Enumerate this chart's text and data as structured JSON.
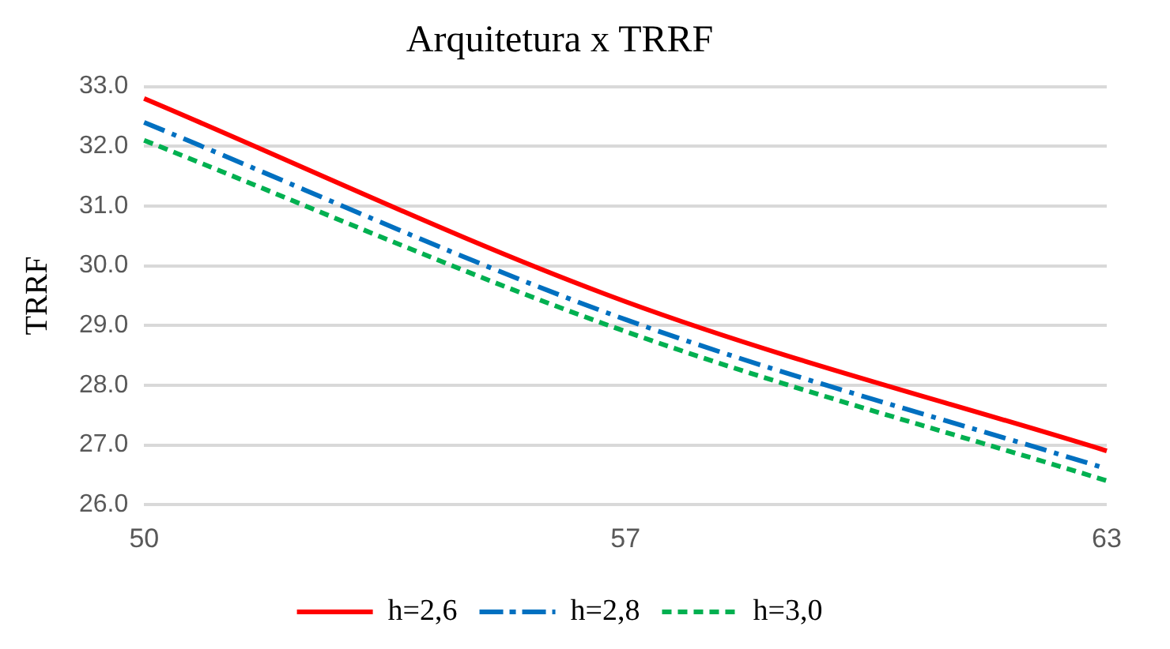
{
  "chart_data": {
    "type": "line",
    "title": "Arquitetura x TRRF",
    "ylabel": "TRRF",
    "categories": [
      "50",
      "57",
      "63"
    ],
    "series": [
      {
        "name": "h=2,6",
        "color": "#ff0000",
        "values": [
          32.8,
          29.4,
          26.9
        ],
        "line_style": "solid"
      },
      {
        "name": "h=2,8",
        "color": "#0070c0",
        "values": [
          32.4,
          29.1,
          26.6
        ],
        "line_style": "dashdot"
      },
      {
        "name": "h=3,0",
        "color": "#00b050",
        "values": [
          32.1,
          28.9,
          26.4
        ],
        "line_style": "dashed"
      }
    ],
    "ylim": [
      26,
      33
    ],
    "yticks": [
      {
        "value": 26,
        "label": "26.0"
      },
      {
        "value": 27,
        "label": "27.0"
      },
      {
        "value": 28,
        "label": "28.0"
      },
      {
        "value": 29,
        "label": "29.0"
      },
      {
        "value": 30,
        "label": "30.0"
      },
      {
        "value": 31,
        "label": "31.0"
      },
      {
        "value": 32,
        "label": "32.0"
      },
      {
        "value": 33,
        "label": "33.0"
      }
    ],
    "grid": "y",
    "legend": "bottom",
    "marker": "none"
  }
}
